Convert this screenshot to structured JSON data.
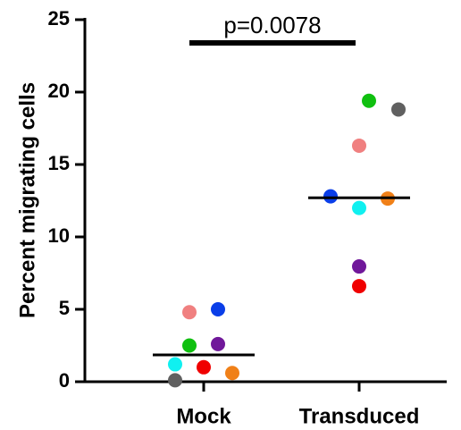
{
  "chart_data": {
    "type": "dot",
    "ylabel": "Percent migrating cells",
    "categories": [
      "Mock",
      "Transduced"
    ],
    "values": [
      [
        4.8,
        5.0,
        2.5,
        2.6,
        1.2,
        1.0,
        0.6,
        0.1
      ],
      [
        19.4,
        18.8,
        16.3,
        12.8,
        12.65,
        12.0,
        7.96,
        6.6
      ]
    ],
    "colors": [
      [
        "#f08080",
        "#0a3ee8",
        "#10c010",
        "#70189a",
        "#10f0f0",
        "#f00000",
        "#f08018",
        "#606060"
      ],
      [
        "#10c010",
        "#606060",
        "#f08080",
        "#0a3ee8",
        "#f08018",
        "#10f0f0",
        "#70189a",
        "#f00000"
      ]
    ],
    "medians": [
      1.85,
      12.7
    ],
    "ylim": [
      0,
      25
    ],
    "yticks": [
      0,
      5,
      10,
      15,
      20,
      25
    ],
    "annotation": "p=0.0078"
  }
}
